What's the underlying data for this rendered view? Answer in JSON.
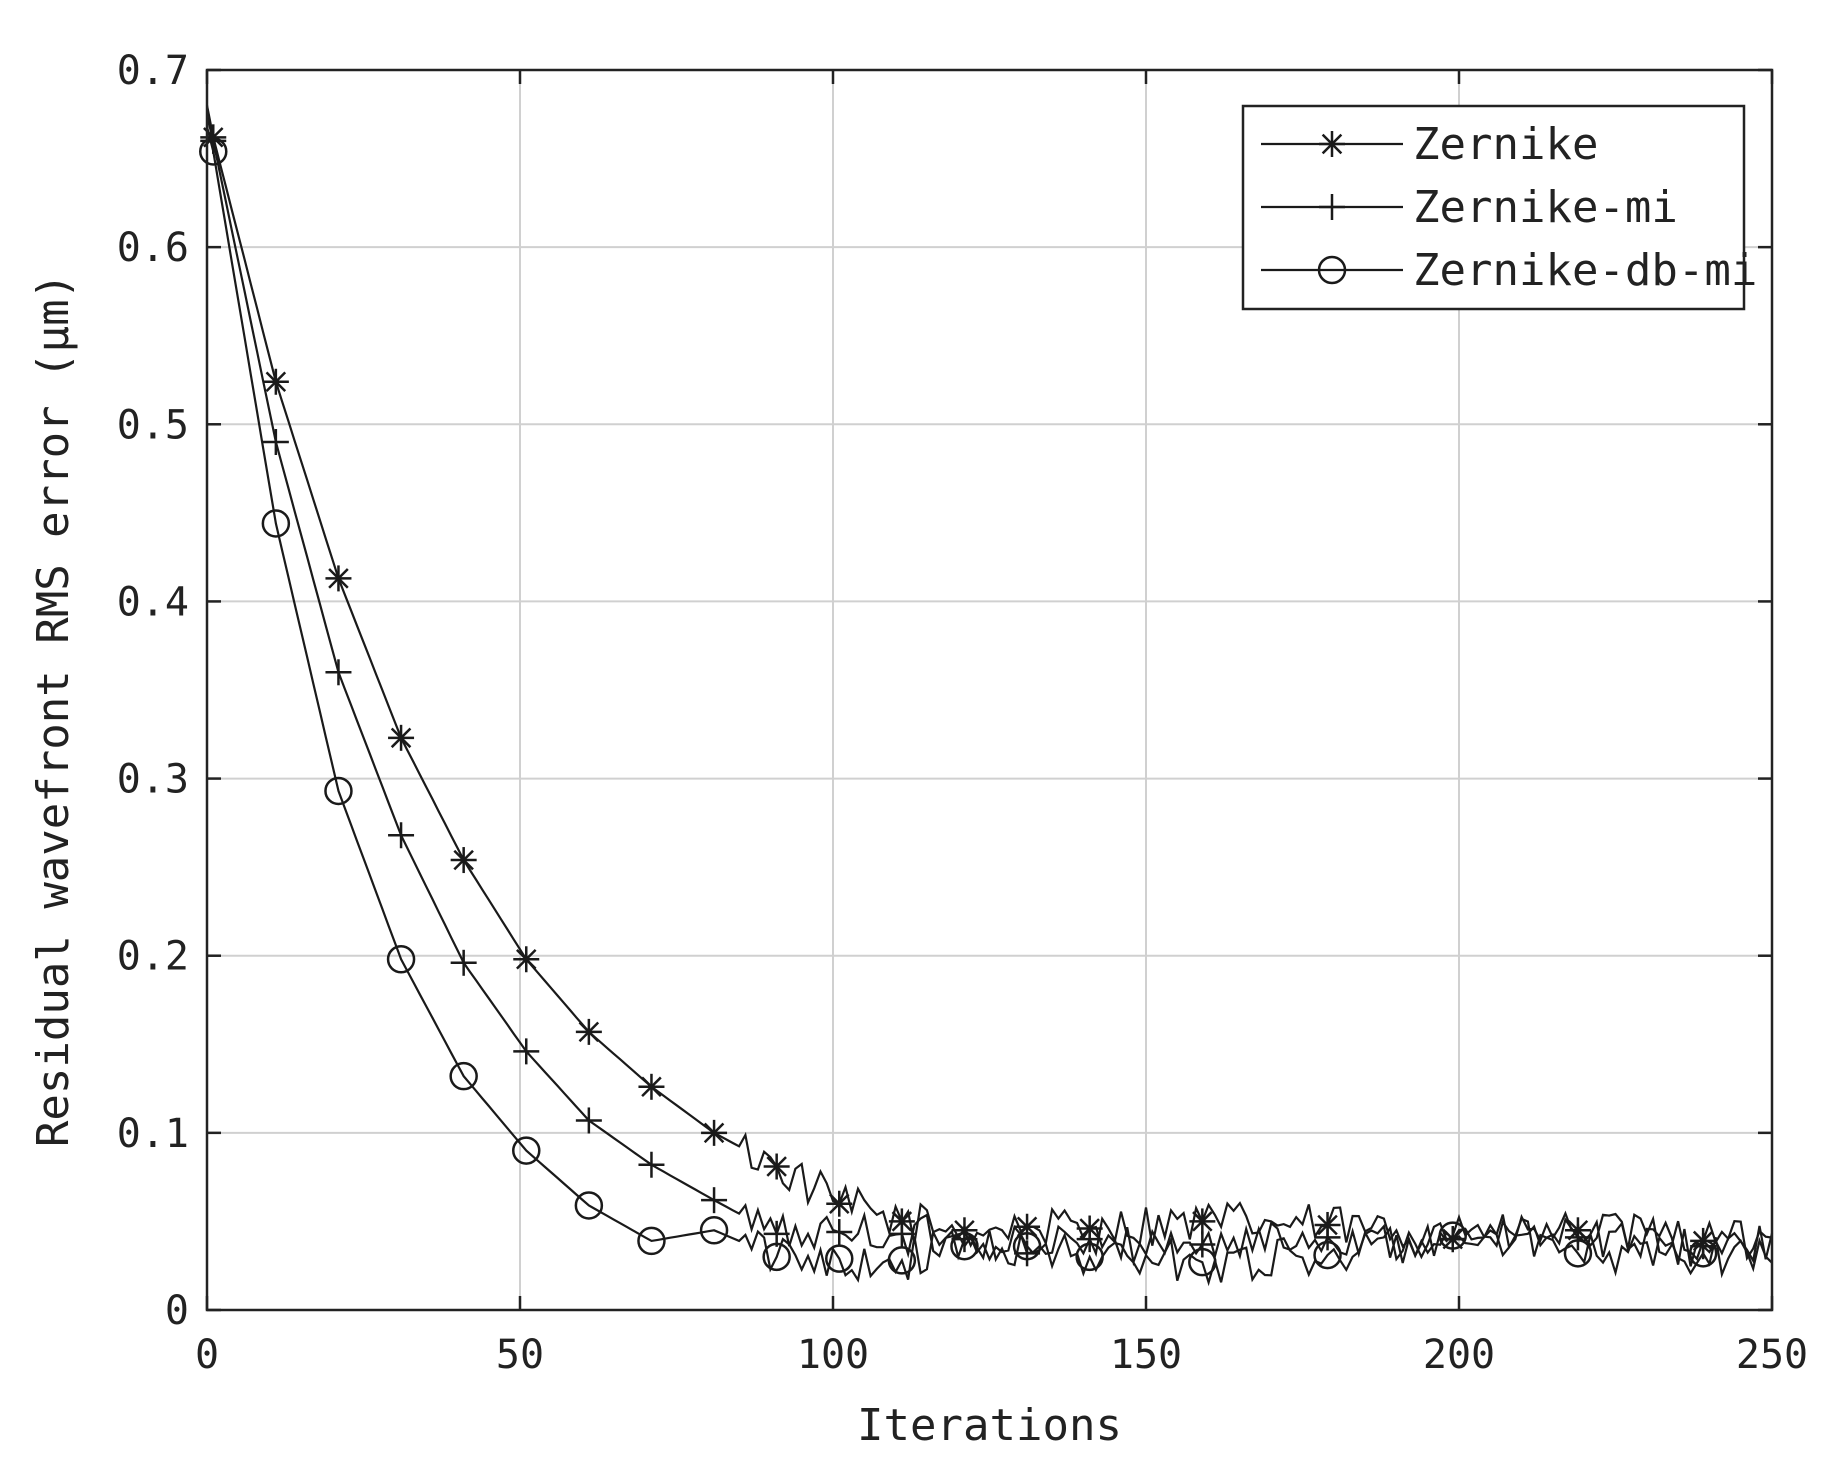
{
  "chart_data": {
    "type": "line",
    "xlabel": "Iterations",
    "ylabel": "Residual wavefront RMS error (μm)",
    "xlim": [
      0,
      250
    ],
    "ylim": [
      0,
      0.7
    ],
    "xticks": [
      0,
      50,
      100,
      150,
      200,
      250
    ],
    "yticks": [
      0,
      0.1,
      0.2,
      0.3,
      0.4,
      0.5,
      0.6,
      0.7
    ],
    "xtick_labels": [
      "0",
      "50",
      "100",
      "150",
      "200",
      "250"
    ],
    "ytick_labels": [
      "0",
      "0.1",
      "0.2",
      "0.3",
      "0.4",
      "0.5",
      "0.6",
      "0.7"
    ],
    "grid": true,
    "legend_position": "top-right",
    "series": [
      {
        "name": "Zernike",
        "marker": "asterisk",
        "marker_points": [
          [
            1,
            0.662
          ],
          [
            11,
            0.524
          ],
          [
            21,
            0.413
          ],
          [
            31,
            0.323
          ],
          [
            41,
            0.254
          ],
          [
            51,
            0.198
          ],
          [
            61,
            0.157
          ],
          [
            71,
            0.126
          ],
          [
            81,
            0.1
          ],
          [
            91,
            0.081
          ],
          [
            101,
            0.06
          ],
          [
            111,
            0.05
          ],
          [
            121,
            0.045
          ],
          [
            131,
            0.047
          ],
          [
            141,
            0.046
          ],
          [
            159,
            0.05
          ],
          [
            179,
            0.048
          ],
          [
            199,
            0.04
          ],
          [
            219,
            0.045
          ],
          [
            239,
            0.039
          ]
        ],
        "tail_noise": 0.012
      },
      {
        "name": "Zernike-mi",
        "marker": "plus",
        "marker_points": [
          [
            1,
            0.66
          ],
          [
            11,
            0.49
          ],
          [
            21,
            0.36
          ],
          [
            31,
            0.268
          ],
          [
            41,
            0.196
          ],
          [
            51,
            0.146
          ],
          [
            61,
            0.107
          ],
          [
            71,
            0.082
          ],
          [
            81,
            0.062
          ],
          [
            91,
            0.043
          ],
          [
            101,
            0.044
          ],
          [
            111,
            0.043
          ],
          [
            121,
            0.04
          ],
          [
            131,
            0.032
          ],
          [
            141,
            0.04
          ],
          [
            159,
            0.037
          ],
          [
            179,
            0.041
          ],
          [
            199,
            0.04
          ],
          [
            219,
            0.041
          ],
          [
            239,
            0.036
          ]
        ],
        "tail_noise": 0.012
      },
      {
        "name": "Zernike-db-mi",
        "marker": "circle",
        "marker_points": [
          [
            1,
            0.654
          ],
          [
            11,
            0.444
          ],
          [
            21,
            0.293
          ],
          [
            31,
            0.198
          ],
          [
            41,
            0.132
          ],
          [
            51,
            0.09
          ],
          [
            61,
            0.059
          ],
          [
            71,
            0.039
          ],
          [
            81,
            0.045
          ],
          [
            91,
            0.03
          ],
          [
            101,
            0.029
          ],
          [
            111,
            0.028
          ],
          [
            121,
            0.036
          ],
          [
            131,
            0.036
          ],
          [
            141,
            0.03
          ],
          [
            159,
            0.027
          ],
          [
            179,
            0.031
          ],
          [
            199,
            0.042
          ],
          [
            219,
            0.032
          ],
          [
            239,
            0.032
          ]
        ],
        "tail_noise": 0.012
      }
    ]
  }
}
